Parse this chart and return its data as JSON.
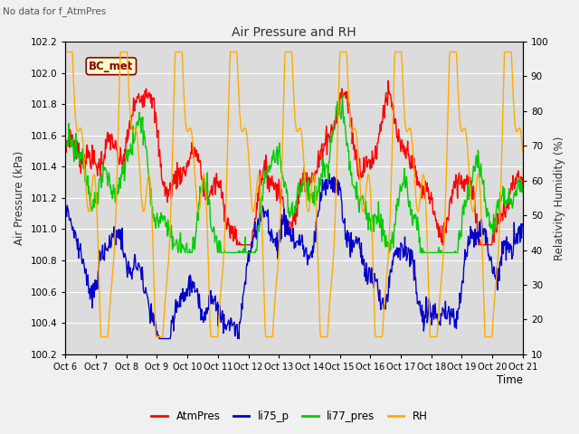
{
  "title": "Air Pressure and RH",
  "top_left_text": "No data for f_AtmPres",
  "annotation_text": "BC_met",
  "xlabel": "Time",
  "ylabel_left": "Air Pressure (kPa)",
  "ylabel_right": "Relativity Humidity (%)",
  "xlim": [
    0,
    15
  ],
  "ylim_left": [
    100.2,
    102.2
  ],
  "ylim_right": [
    10,
    100
  ],
  "x_tick_labels": [
    "Oct 6",
    "Oct 7",
    "Oct 8",
    "Oct 9",
    "Oct 10",
    "Oct 11",
    "Oct 12",
    "Oct 13",
    "Oct 14",
    "Oct 15",
    "Oct 16",
    "Oct 17",
    "Oct 18",
    "Oct 19",
    "Oct 20",
    "Oct 21"
  ],
  "yticks_left": [
    100.2,
    100.4,
    100.6,
    100.8,
    101.0,
    101.2,
    101.4,
    101.6,
    101.8,
    102.0,
    102.2
  ],
  "yticks_right": [
    10,
    20,
    30,
    40,
    50,
    60,
    70,
    80,
    90,
    100
  ],
  "colors": {
    "AtmPres": "#ff0000",
    "li75_p": "#0000cc",
    "li77_pres": "#00cc00",
    "RH": "#ffaa00"
  },
  "bg_color": "#dcdcdc",
  "fig_bg_color": "#f0f0f0",
  "grid_color": "#ffffff",
  "legend_labels": [
    "AtmPres",
    "li75_p",
    "li77_pres",
    "RH"
  ]
}
